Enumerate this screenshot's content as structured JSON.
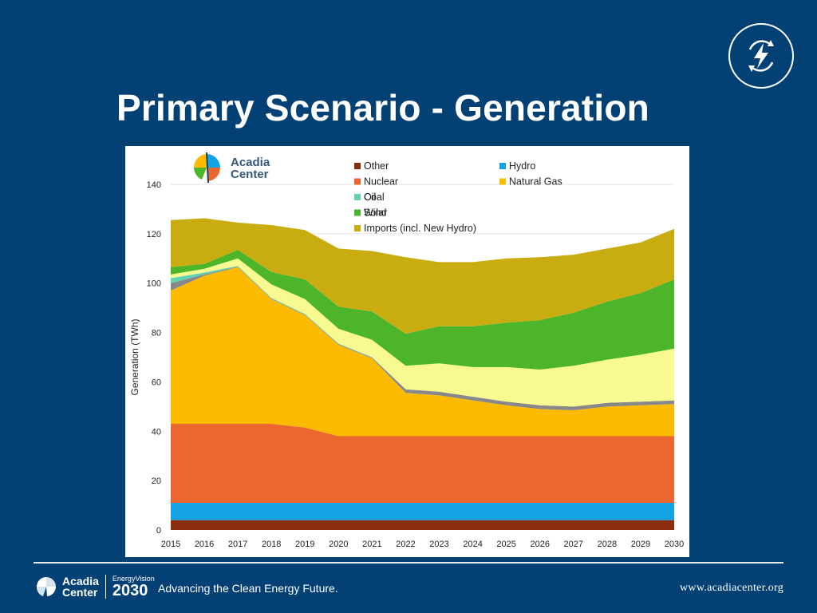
{
  "slide": {
    "title": "Primary Scenario - Generation",
    "footer_brand_line1": "Acadia",
    "footer_brand_line2": "Center",
    "footer_ev_small": "EnergyVision",
    "footer_ev_big": "2030",
    "tagline": "Advancing the Clean Energy Future.",
    "website": "www.acadiacenter.org"
  },
  "chart_logo": {
    "line1": "Acadia",
    "line2": "Center"
  },
  "colors": {
    "background": "#034174",
    "Other": "#8b2e10",
    "Hydro": "#15a4e3",
    "Nuclear": "#ec6630",
    "Natural Gas": "#fdbb00",
    "Coal": "#888888",
    "Oil": "#61d1b4",
    "Solar": "#f8fa91",
    "Wind": "#4db52a",
    "Imports (incl. New Hydro)": "#c9ad10"
  },
  "chart_data": {
    "type": "area",
    "stacked": true,
    "ylabel": "Generation (TWh)",
    "xlabel": "",
    "ylim": [
      0,
      140
    ],
    "yticks": [
      0,
      20,
      40,
      60,
      80,
      100,
      120,
      140
    ],
    "grid": true,
    "legend_placement": "top-right",
    "categories": [
      "2015",
      "2016",
      "2017",
      "2018",
      "2019",
      "2020",
      "2021",
      "2022",
      "2023",
      "2024",
      "2025",
      "2026",
      "2027",
      "2028",
      "2029",
      "2030"
    ],
    "series": [
      {
        "name": "Other",
        "values": [
          4,
          4,
          4,
          4,
          4,
          4,
          4,
          4,
          4,
          4,
          4,
          4,
          4,
          4,
          4,
          4
        ]
      },
      {
        "name": "Hydro",
        "values": [
          7,
          7,
          7,
          7,
          7,
          7,
          7,
          7,
          7,
          7,
          7,
          7,
          7,
          7,
          7,
          7
        ]
      },
      {
        "name": "Nuclear",
        "values": [
          32,
          32,
          32,
          32,
          30.5,
          27,
          27,
          27,
          27,
          27,
          27,
          27,
          27,
          27,
          27,
          27
        ]
      },
      {
        "name": "Natural Gas",
        "values": [
          54,
          60,
          63.5,
          50.5,
          45.5,
          37,
          31.5,
          17.5,
          16.5,
          14.5,
          12.5,
          11,
          10.5,
          12,
          12.5,
          13
        ]
      },
      {
        "name": "Coal",
        "values": [
          3,
          0.5,
          0.2,
          0.2,
          0.2,
          0.3,
          0.3,
          1.5,
          1.5,
          1.5,
          1.5,
          1.5,
          1.5,
          1.5,
          1.5,
          1.5
        ]
      },
      {
        "name": "Oil",
        "values": [
          2,
          0.8,
          0.3,
          0.3,
          0.3,
          0.2,
          0.2,
          0,
          0,
          0,
          0,
          0,
          0,
          0,
          0,
          0
        ]
      },
      {
        "name": "Solar",
        "values": [
          1.5,
          1.5,
          3,
          5.5,
          6,
          6,
          7,
          9.5,
          11.5,
          12,
          14,
          14.5,
          16.5,
          17.5,
          19,
          21
        ]
      },
      {
        "name": "Wind",
        "values": [
          3,
          2,
          3.5,
          5,
          8,
          9,
          11.5,
          13,
          15,
          16.5,
          18,
          20,
          21.5,
          23.5,
          25,
          28
        ]
      },
      {
        "name": "Imports (incl. New Hydro)",
        "values": [
          19,
          18.5,
          11,
          19,
          20,
          23.5,
          24.5,
          31,
          26,
          26,
          26,
          25.5,
          23.5,
          21.5,
          20.5,
          20.5
        ]
      }
    ],
    "legend": [
      {
        "name": "Other",
        "label": "Other"
      },
      {
        "name": "Hydro",
        "label": "Hydro"
      },
      {
        "name": "Nuclear",
        "label": "Nuclear"
      },
      {
        "name": "Natural Gas",
        "label": "Natural Gas"
      },
      {
        "name": "Coal",
        "label": "Coal"
      },
      {
        "name": "Oil",
        "label": "Oil"
      },
      {
        "name": "Solar",
        "label": "Solar"
      },
      {
        "name": "Wind",
        "label": "Wind"
      },
      {
        "name": "Imports (incl. New Hydro)",
        "label": "Imports (incl. New Hydro)"
      }
    ]
  }
}
